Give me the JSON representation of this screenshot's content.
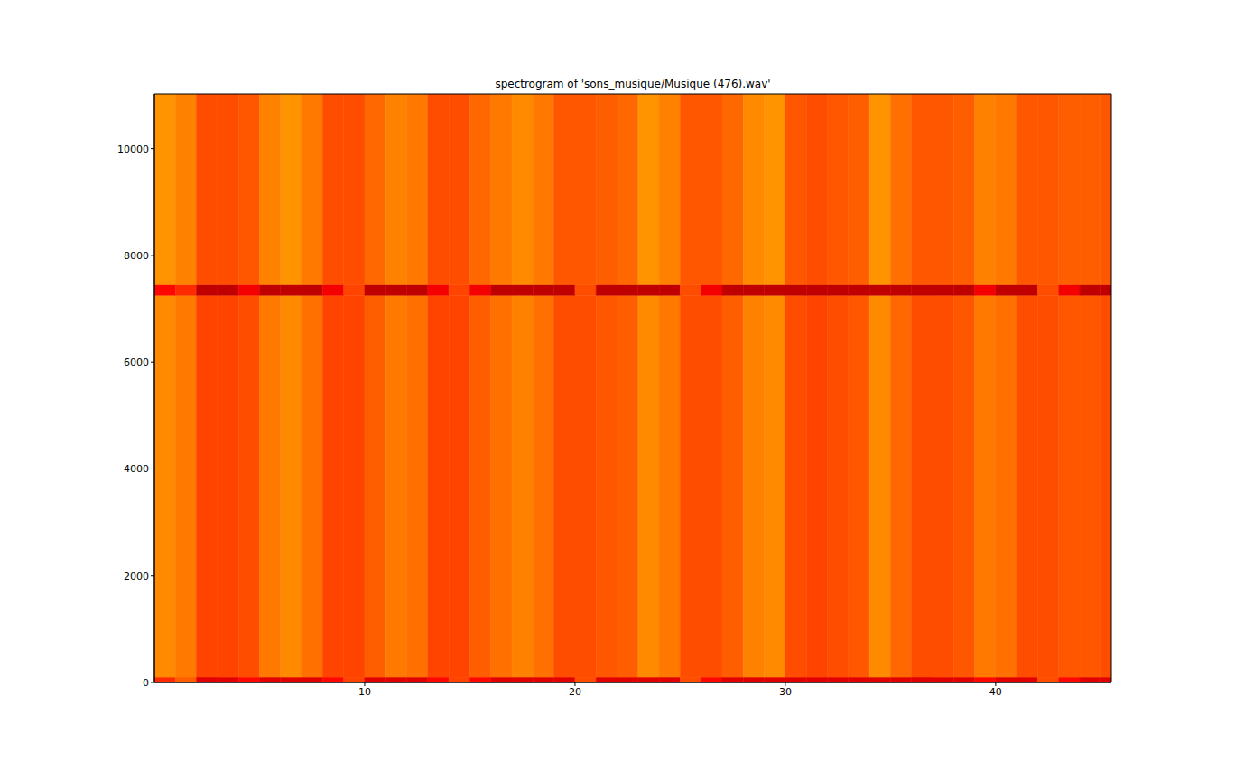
{
  "chart_data": {
    "type": "heatmap",
    "title": "spectrogram of 'sons_musique/Musique (476).wav'",
    "xlim": [
      0,
      45.5
    ],
    "xticks": [
      10,
      20,
      30,
      40
    ],
    "ylim": [
      0,
      11025
    ],
    "yticks": [
      0,
      2000,
      4000,
      6000,
      8000,
      10000
    ],
    "x_edges": [
      0,
      1,
      2,
      3,
      4,
      5,
      6,
      7,
      8,
      9,
      10,
      11,
      12,
      13,
      14,
      15,
      16,
      17,
      18,
      19,
      20,
      21,
      22,
      23,
      24,
      25,
      26,
      27,
      28,
      29,
      30,
      31,
      32,
      33,
      34,
      35,
      36,
      37,
      38,
      39,
      40,
      41,
      42,
      43,
      44,
      45,
      45.5
    ],
    "y_edges": [
      0,
      100,
      7250,
      7450,
      11025
    ],
    "color_range": [
      -100,
      -20
    ],
    "cells": [
      [
        -66,
        -60,
        -74,
        -74,
        -70,
        -74,
        -74,
        -74,
        -70,
        -63,
        -74,
        -74,
        -74,
        -70,
        -63,
        -70,
        -74,
        -74,
        -74,
        -74,
        -62,
        -74,
        -74,
        -74,
        -74,
        -62,
        -70,
        -74,
        -74,
        -74,
        -74,
        -74,
        -74,
        -74,
        -74,
        -74,
        -74,
        -74,
        -74,
        -70,
        -74,
        -74,
        -62,
        -70,
        -74,
        -74
      ],
      [
        -55,
        -57,
        -63,
        -63,
        -62,
        -57,
        -55,
        -58,
        -63,
        -63,
        -60,
        -57,
        -58,
        -63,
        -63,
        -60,
        -58,
        -56,
        -58,
        -62,
        -62,
        -61,
        -60,
        -55,
        -57,
        -62,
        -62,
        -60,
        -56,
        -55,
        -62,
        -63,
        -62,
        -61,
        -55,
        -59,
        -62,
        -62,
        -61,
        -57,
        -58,
        -62,
        -62,
        -61,
        -61,
        -62
      ],
      [
        -70,
        -66,
        -78,
        -78,
        -72,
        -78,
        -78,
        -78,
        -72,
        -63,
        -78,
        -78,
        -78,
        -72,
        -63,
        -72,
        -78,
        -78,
        -78,
        -78,
        -62,
        -78,
        -78,
        -78,
        -78,
        -62,
        -72,
        -78,
        -78,
        -78,
        -78,
        -78,
        -78,
        -78,
        -78,
        -78,
        -78,
        -78,
        -78,
        -72,
        -78,
        -78,
        -62,
        -72,
        -78,
        -78
      ],
      [
        -54,
        -56,
        -62,
        -62,
        -61,
        -56,
        -54,
        -57,
        -62,
        -62,
        -59,
        -56,
        -57,
        -62,
        -62,
        -59,
        -57,
        -55,
        -57,
        -61,
        -61,
        -60,
        -59,
        -54,
        -56,
        -61,
        -61,
        -59,
        -55,
        -54,
        -61,
        -62,
        -61,
        -60,
        -54,
        -58,
        -61,
        -61,
        -60,
        -56,
        -57,
        -61,
        -61,
        -60,
        -60,
        -61
      ]
    ]
  }
}
